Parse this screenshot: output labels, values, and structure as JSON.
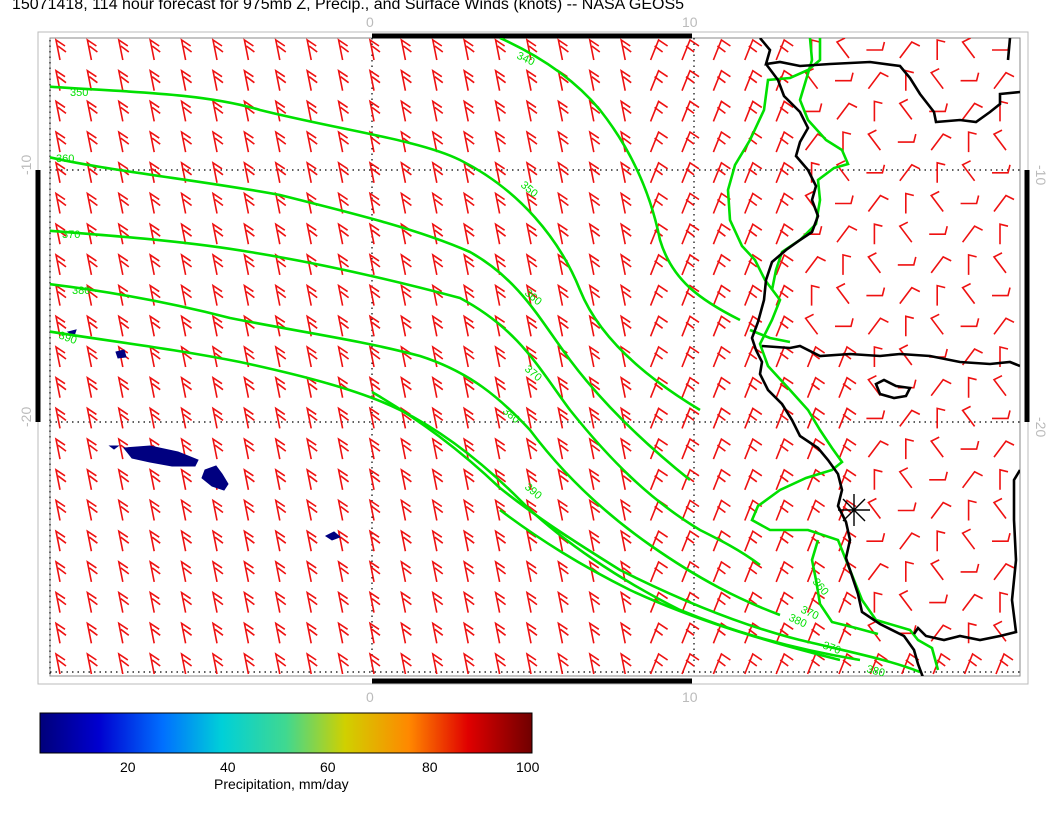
{
  "title": "15071418, 114 hour forecast for 975mb Z, Precip., and Surface Winds (knots) -- NASA GEOS5",
  "map": {
    "top_ticks": [
      "0",
      "10"
    ],
    "bottom_ticks": [
      "0",
      "10"
    ],
    "left_ticks": [
      "-10",
      "-20"
    ],
    "right_ticks": [
      "-10",
      "-20"
    ],
    "contour_labels": [
      "340",
      "350",
      "360",
      "370",
      "380",
      "390",
      "350",
      "360",
      "370",
      "380",
      "390",
      "370",
      "380",
      "370",
      "380",
      "360"
    ],
    "colors": {
      "wind_barb": "#ee1111",
      "height_contour": "#00e000",
      "coastline": "#000000",
      "precip_low": "#000080"
    }
  },
  "colorbar": {
    "ticks": [
      "20",
      "40",
      "60",
      "80",
      "100"
    ],
    "label": "Precipitation, mm/day",
    "range": [
      0,
      100
    ]
  }
}
